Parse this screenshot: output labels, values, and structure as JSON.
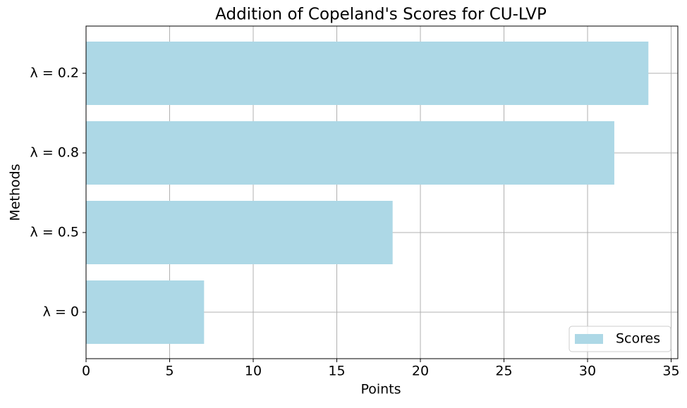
{
  "chart_data": {
    "type": "barh",
    "title": "Addition of Copeland's Scores for CU-LVP",
    "x_label": "Points",
    "y_label": "Methods",
    "categories": [
      "λ = 0",
      "λ = 0.5",
      "λ = 0.8",
      "λ = 0.2"
    ],
    "series": [
      {
        "name": "Scores",
        "color": "#add8e6",
        "values": [
          7.06,
          18.34,
          31.6,
          33.64
        ]
      }
    ],
    "xlim": [
      0,
      35.4
    ],
    "xticks": [
      0,
      5,
      10,
      15,
      20,
      25,
      30,
      35
    ],
    "grid": true,
    "legend": "lower right"
  }
}
